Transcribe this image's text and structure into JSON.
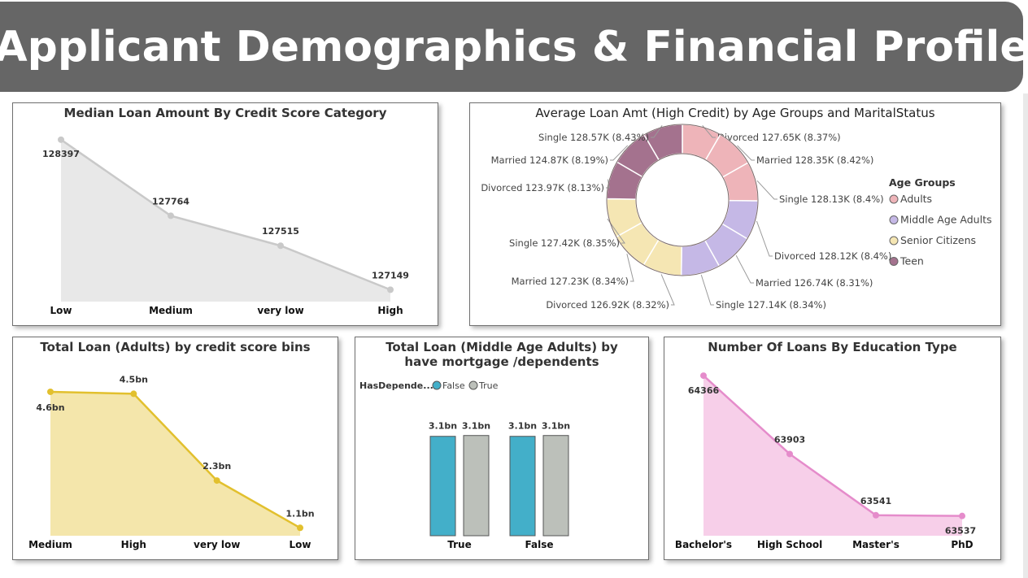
{
  "page": {
    "title": "Applicant Demographics & Financial Profile"
  },
  "colors": {
    "banner": "#666666",
    "chart1_line": "#c9c9c9",
    "chart1_fill": "#e8e8e8",
    "adults": "#eeb4b9",
    "middle_age": "#c5b8e6",
    "senior": "#f5e6b3",
    "teen": "#a4728e",
    "chart3_line": "#e2c02e",
    "chart3_fill": "#f4e6ab",
    "bar_false": "#43afc9",
    "bar_true": "#bcc0ba",
    "chart5_line": "#e58ccb",
    "chart5_fill": "#f7cfe9"
  },
  "chart_data": [
    {
      "id": "median_loan",
      "type": "area",
      "title": "Median Loan Amount By Credit Score Category",
      "categories": [
        "Low",
        "Medium",
        "very low",
        "High"
      ],
      "values": [
        128397,
        127764,
        127515,
        127149
      ],
      "labels": [
        "128397",
        "127764",
        "127515",
        "127149"
      ],
      "ylim": [
        127050,
        128450
      ]
    },
    {
      "id": "avg_loan_donut",
      "type": "pie",
      "title": "Average Loan Amt (High Credit) by Age Groups and MaritalStatus",
      "legend_title": "Age Groups",
      "legend": [
        "Adults",
        "Middle Age Adults",
        "Senior Citizens",
        "Teen"
      ],
      "slices": [
        {
          "group": "Adults",
          "label": "Divorced 127.65K (8.37%)",
          "value": 127.65
        },
        {
          "group": "Adults",
          "label": "Married 128.35K (8.42%)",
          "value": 128.35
        },
        {
          "group": "Adults",
          "label": "Single 128.13K (8.4%)",
          "value": 128.13
        },
        {
          "group": "Middle Age Adults",
          "label": "Divorced 128.12K (8.4%)",
          "value": 128.12
        },
        {
          "group": "Middle Age Adults",
          "label": "Married 126.74K (8.31%)",
          "value": 126.74
        },
        {
          "group": "Middle Age Adults",
          "label": "Single 127.14K (8.34%)",
          "value": 127.14
        },
        {
          "group": "Senior Citizens",
          "label": "Divorced 126.92K (8.32%)",
          "value": 126.92
        },
        {
          "group": "Senior Citizens",
          "label": "Married 127.23K (8.34%)",
          "value": 127.23
        },
        {
          "group": "Senior Citizens",
          "label": "Single 127.42K (8.35%)",
          "value": 127.42
        },
        {
          "group": "Teen",
          "label": "Divorced 123.97K (8.13%)",
          "value": 123.97
        },
        {
          "group": "Teen",
          "label": "Married 124.87K (8.19%)",
          "value": 124.87
        },
        {
          "group": "Teen",
          "label": "Single 128.57K (8.43%)",
          "value": 128.57
        }
      ]
    },
    {
      "id": "total_loan_adults",
      "type": "area",
      "title": "Total Loan (Adults) by credit score bins",
      "categories": [
        "Medium",
        "High",
        "very low",
        "Low"
      ],
      "values": [
        4.55,
        4.5,
        2.3,
        1.1
      ],
      "labels": [
        "4.6bn",
        "4.5bn",
        "2.3bn",
        "1.1bn"
      ],
      "ylim": [
        0.9,
        4.9
      ]
    },
    {
      "id": "total_loan_middle",
      "type": "bar",
      "title": "Total Loan (Middle Age Adults) by have mortgage /dependents",
      "legend_title": "HasDepende...",
      "legend": [
        "False",
        "True"
      ],
      "categories": [
        "True",
        "False"
      ],
      "series": [
        {
          "name": "False",
          "values": [
            3.1,
            3.1
          ],
          "labels": [
            "3.1bn",
            "3.1bn"
          ]
        },
        {
          "name": "True",
          "values": [
            3.1,
            3.1
          ],
          "labels": [
            "3.1bn",
            "3.1bn"
          ]
        }
      ],
      "ylim": [
        0,
        3.6
      ]
    },
    {
      "id": "loans_by_education",
      "type": "area",
      "title": "Number Of Loans By Education Type",
      "categories": [
        "Bachelor's",
        "High School",
        "Master's",
        "PhD"
      ],
      "values": [
        64366,
        63903,
        63541,
        63537
      ],
      "labels": [
        "64366",
        "63903",
        "63541",
        "63537"
      ],
      "ylim": [
        63420,
        64400
      ]
    }
  ]
}
